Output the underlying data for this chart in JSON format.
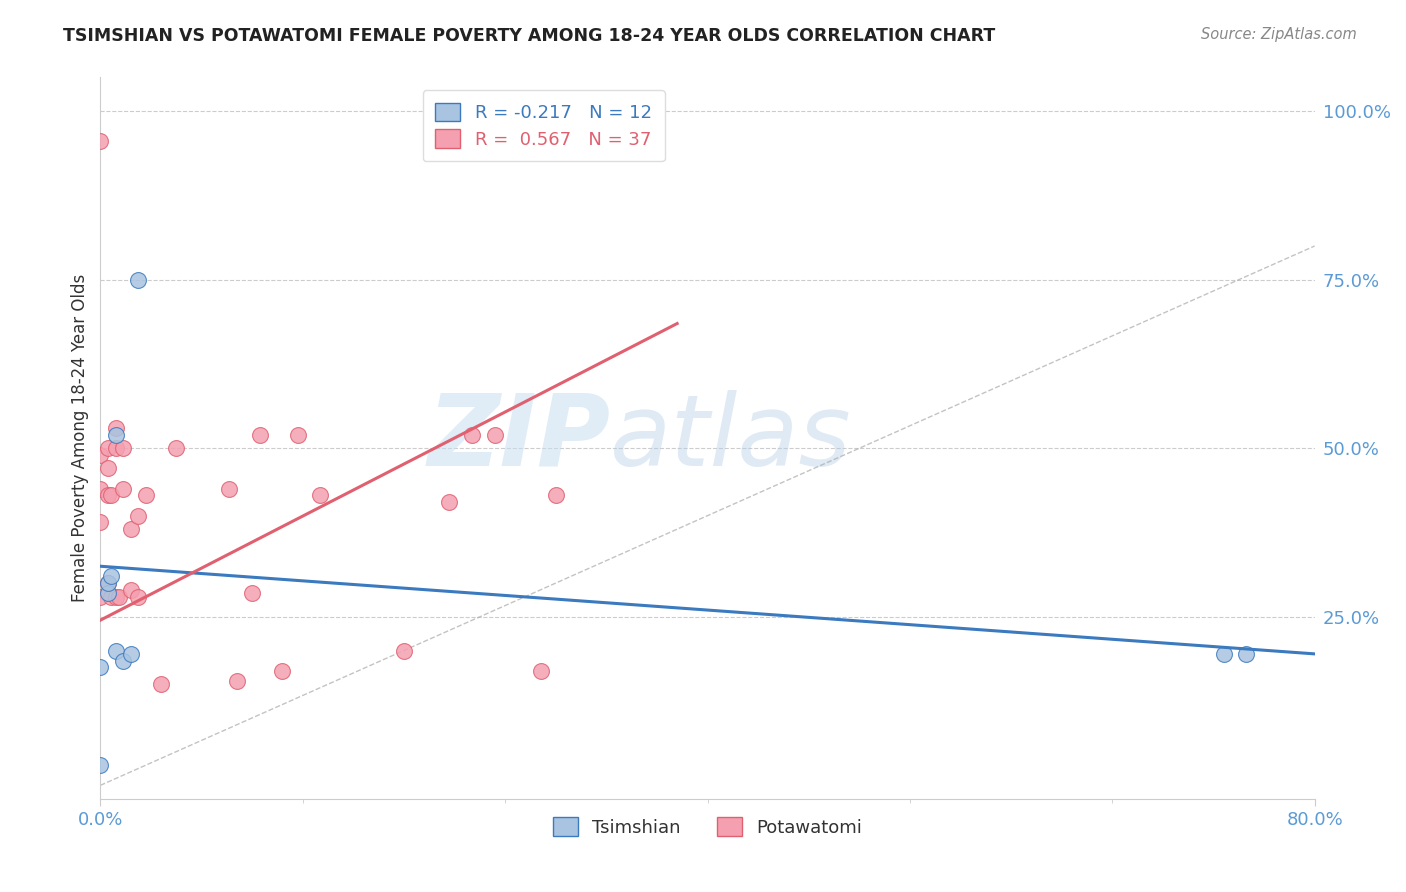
{
  "title": "TSIMSHIAN VS POTAWATOMI FEMALE POVERTY AMONG 18-24 YEAR OLDS CORRELATION CHART",
  "source": "Source: ZipAtlas.com",
  "ylabel": "Female Poverty Among 18-24 Year Olds",
  "xlim": [
    0.0,
    0.8
  ],
  "ylim": [
    -0.02,
    1.05
  ],
  "yticks_right": [
    0.0,
    0.25,
    0.5,
    0.75,
    1.0
  ],
  "ytick_labels_right": [
    "",
    "25.0%",
    "50.0%",
    "75.0%",
    "100.0%"
  ],
  "tsimshian_color": "#a8c4e0",
  "potawatomi_color": "#f4a0b0",
  "tsimshian_line_color": "#3b7abf",
  "potawatomi_line_color": "#e06070",
  "legend_tsimshian": "R = -0.217   N = 12",
  "legend_potawatomi": "R =  0.567   N = 37",
  "watermark_zip": "ZIP",
  "watermark_atlas": "atlas",
  "tsimshian_x": [
    0.0,
    0.0,
    0.005,
    0.005,
    0.007,
    0.01,
    0.01,
    0.015,
    0.02,
    0.025,
    0.74,
    0.755
  ],
  "tsimshian_y": [
    0.03,
    0.175,
    0.285,
    0.3,
    0.31,
    0.52,
    0.2,
    0.185,
    0.195,
    0.75,
    0.195,
    0.195
  ],
  "potawatomi_x": [
    0.0,
    0.0,
    0.0,
    0.0,
    0.0,
    0.005,
    0.005,
    0.005,
    0.005,
    0.007,
    0.007,
    0.01,
    0.01,
    0.01,
    0.012,
    0.015,
    0.015,
    0.02,
    0.02,
    0.025,
    0.025,
    0.03,
    0.04,
    0.05,
    0.085,
    0.09,
    0.1,
    0.105,
    0.12,
    0.13,
    0.145,
    0.2,
    0.23,
    0.245,
    0.26,
    0.29,
    0.3
  ],
  "potawatomi_y": [
    0.955,
    0.49,
    0.44,
    0.39,
    0.28,
    0.5,
    0.47,
    0.43,
    0.3,
    0.43,
    0.28,
    0.53,
    0.5,
    0.28,
    0.28,
    0.5,
    0.44,
    0.38,
    0.29,
    0.4,
    0.28,
    0.43,
    0.15,
    0.5,
    0.44,
    0.155,
    0.285,
    0.52,
    0.17,
    0.52,
    0.43,
    0.2,
    0.42,
    0.52,
    0.52,
    0.17,
    0.43
  ],
  "tsimshian_trend": [
    0.0,
    0.8,
    0.325,
    0.195
  ],
  "potawatomi_trend": [
    0.0,
    0.38,
    0.245,
    0.685
  ],
  "diag_line": [
    0.0,
    0.8,
    0.0,
    0.8
  ]
}
